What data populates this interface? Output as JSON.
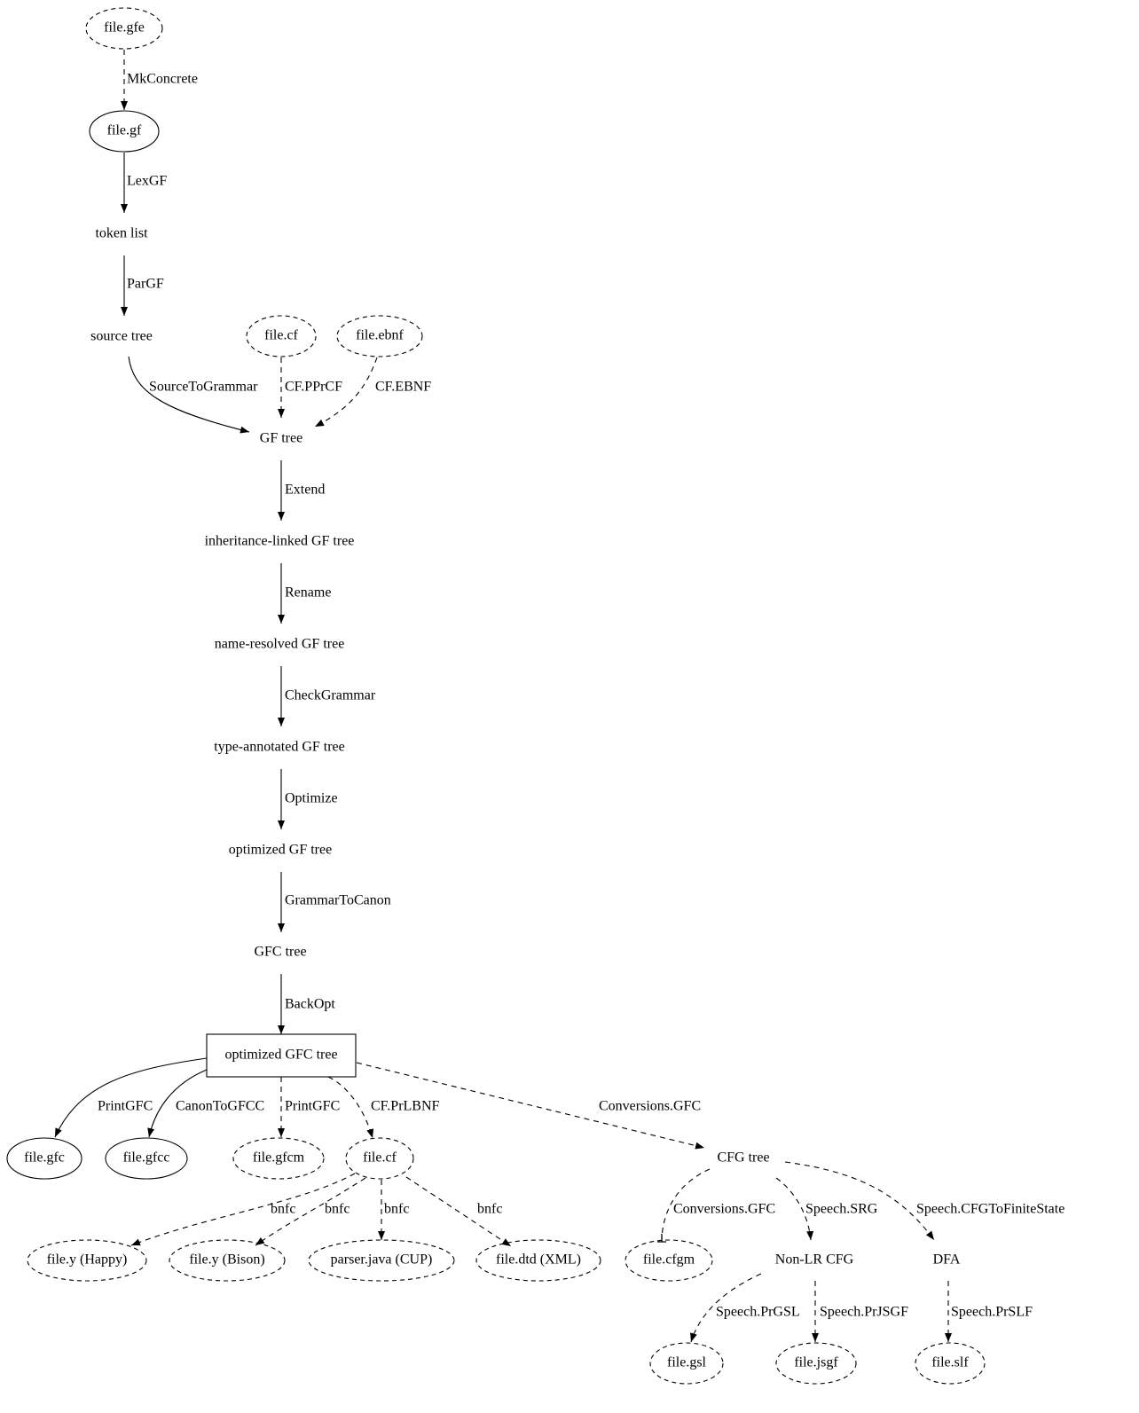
{
  "nodes": [
    {
      "label": "file.gfe"
    },
    {
      "label": "file.gf"
    },
    {
      "label": "token list"
    },
    {
      "label": "source tree"
    },
    {
      "label": "file.cf"
    },
    {
      "label": "file.ebnf"
    },
    {
      "label": "GF tree"
    },
    {
      "label": "inheritance-linked GF tree"
    },
    {
      "label": "name-resolved GF tree"
    },
    {
      "label": "type-annotated GF tree"
    },
    {
      "label": "optimized GF tree"
    },
    {
      "label": "GFC tree"
    },
    {
      "label": "optimized GFC tree"
    },
    {
      "label": "file.gfc"
    },
    {
      "label": "file.gfcc"
    },
    {
      "label": "file.gfcm"
    },
    {
      "label": "file.cf"
    },
    {
      "label": "CFG tree"
    },
    {
      "label": "file.y (Happy)"
    },
    {
      "label": "file.y (Bison)"
    },
    {
      "label": "parser.java (CUP)"
    },
    {
      "label": "file.dtd (XML)"
    },
    {
      "label": "file.cfgm"
    },
    {
      "label": "Non-LR CFG"
    },
    {
      "label": "DFA"
    },
    {
      "label": "file.gsl"
    },
    {
      "label": "file.jsgf"
    },
    {
      "label": "file.slf"
    }
  ],
  "edges": [
    {
      "label": "MkConcrete"
    },
    {
      "label": "LexGF"
    },
    {
      "label": "ParGF"
    },
    {
      "label": "SourceToGrammar"
    },
    {
      "label": "CF.PPrCF"
    },
    {
      "label": "CF.EBNF"
    },
    {
      "label": "Extend"
    },
    {
      "label": "Rename"
    },
    {
      "label": "CheckGrammar"
    },
    {
      "label": "Optimize"
    },
    {
      "label": "GrammarToCanon"
    },
    {
      "label": "BackOpt"
    },
    {
      "label": "PrintGFC"
    },
    {
      "label": "CanonToGFCC"
    },
    {
      "label": "PrintGFC"
    },
    {
      "label": "CF.PrLBNF"
    },
    {
      "label": "Conversions.GFC"
    },
    {
      "label": "bnfc"
    },
    {
      "label": "bnfc"
    },
    {
      "label": "bnfc"
    },
    {
      "label": "bnfc"
    },
    {
      "label": "Conversions.GFC"
    },
    {
      "label": "Speech.SRG"
    },
    {
      "label": "Speech.CFGToFiniteState"
    },
    {
      "label": "Speech.PrGSL"
    },
    {
      "label": "Speech.PrJSGF"
    },
    {
      "label": "Speech.PrSLF"
    }
  ]
}
